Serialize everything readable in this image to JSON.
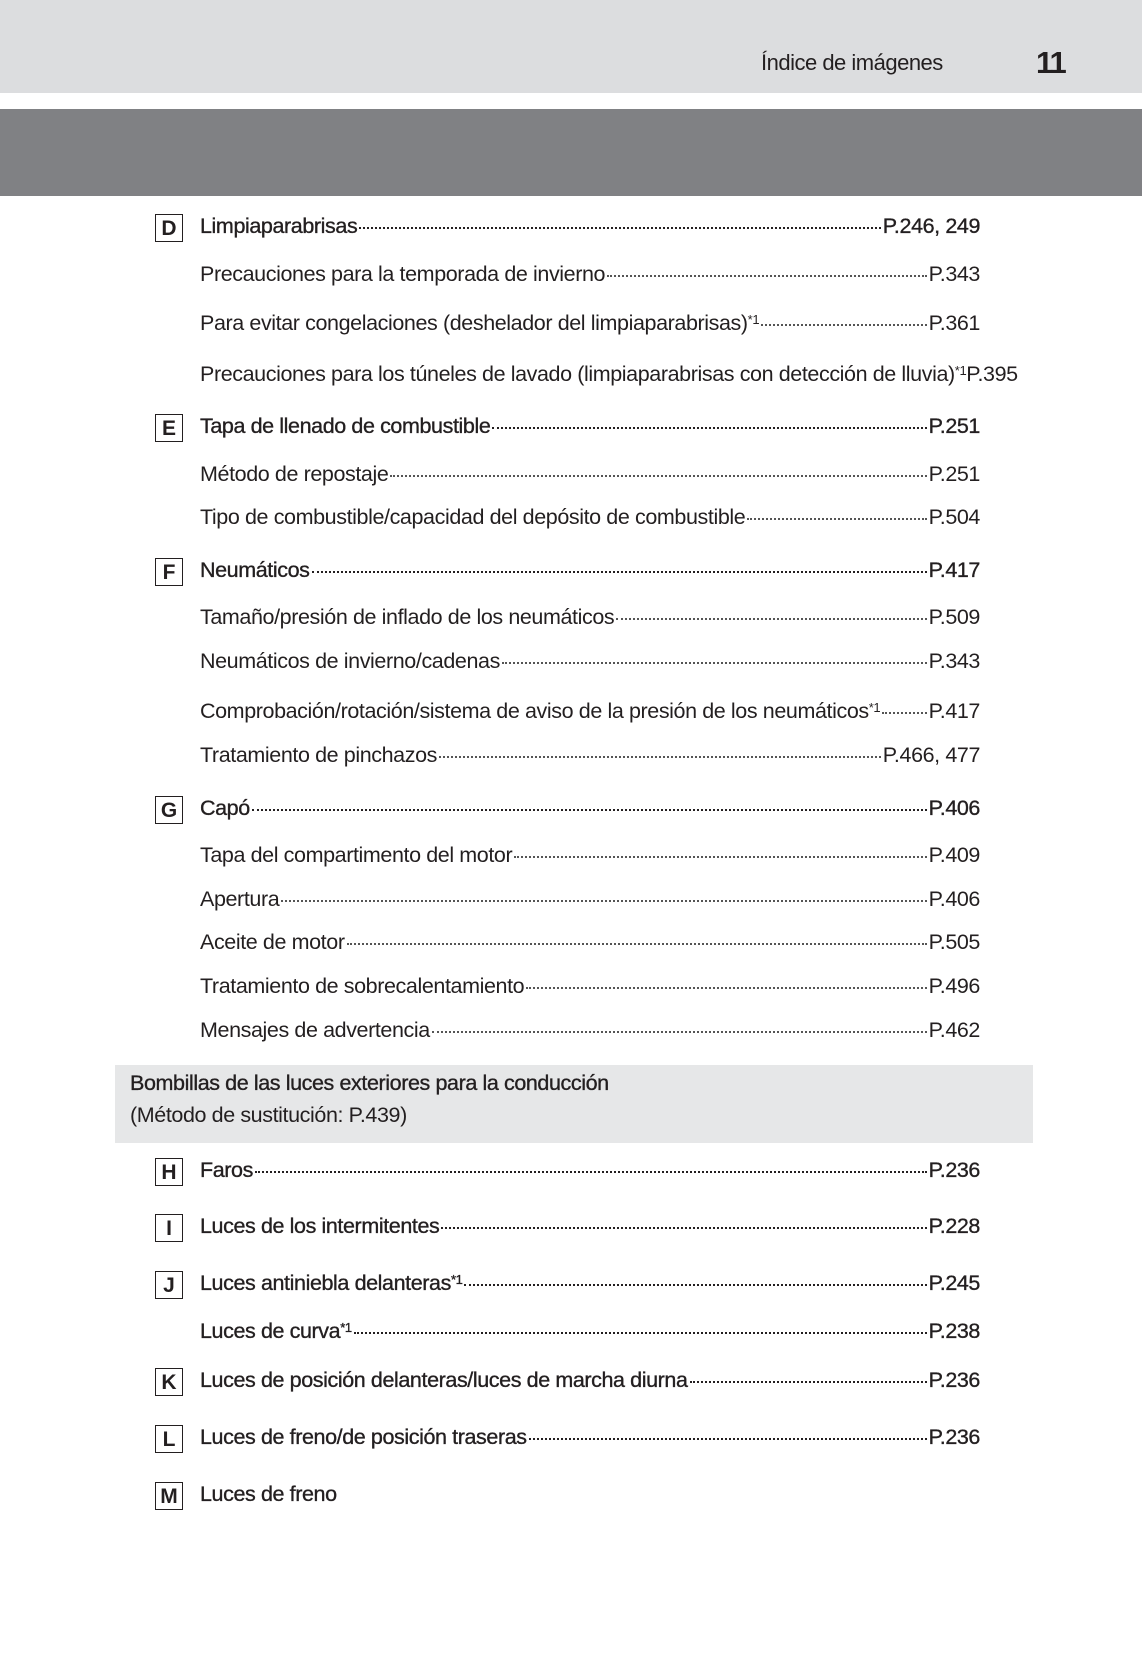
{
  "header": {
    "title": "Índice de imágenes",
    "page_number": "11"
  },
  "entries": [
    {
      "letter": "D",
      "label": "Limpiaparabrisas",
      "sup": "",
      "page": "P.246, 249",
      "main": true
    },
    {
      "letter": "",
      "label": "Precauciones para la temporada de invierno",
      "sup": "",
      "page": "P.343",
      "main": false
    },
    {
      "letter": "",
      "label": "Para evitar congelaciones (deshelador del limpiaparabrisas)",
      "sup": "*1",
      "page": "P.361",
      "main": false
    },
    {
      "letter": "",
      "label": "Precauciones para los túneles de lavado (limpiaparabrisas con detección de lluvia)",
      "sup": "*1",
      "page": "P.395",
      "main": false
    },
    {
      "letter": "E",
      "label": "Tapa de llenado de combustible",
      "sup": "",
      "page": "P.251",
      "main": true
    },
    {
      "letter": "",
      "label": "Método de repostaje",
      "sup": "",
      "page": "P.251",
      "main": false
    },
    {
      "letter": "",
      "label": "Tipo de combustible/capacidad del depósito de combustible",
      "sup": "",
      "page": "P.504",
      "main": false
    },
    {
      "letter": "F",
      "label": "Neumáticos",
      "sup": "",
      "page": "P.417",
      "main": true
    },
    {
      "letter": "",
      "label": "Tamaño/presión de inflado de los neumáticos",
      "sup": "",
      "page": "P.509",
      "main": false
    },
    {
      "letter": "",
      "label": "Neumáticos de invierno/cadenas",
      "sup": "",
      "page": "P.343",
      "main": false
    },
    {
      "letter": "",
      "label": "Comprobación/rotación/sistema de aviso de la presión de los neumáticos",
      "sup": "*1",
      "page": "P.417",
      "main": false
    },
    {
      "letter": "",
      "label": "Tratamiento de pinchazos",
      "sup": "",
      "page": "P.466, 477",
      "main": false
    },
    {
      "letter": "G",
      "label": "Capó",
      "sup": "",
      "page": "P.406",
      "main": true
    },
    {
      "letter": "",
      "label": "Tapa del compartimento del motor",
      "sup": "",
      "page": "P.409",
      "main": false
    },
    {
      "letter": "",
      "label": "Apertura",
      "sup": "",
      "page": "P.406",
      "main": false
    },
    {
      "letter": "",
      "label": "Aceite de motor",
      "sup": "",
      "page": "P.505",
      "main": false
    },
    {
      "letter": "",
      "label": "Tratamiento de sobrecalentamiento",
      "sup": "",
      "page": "P.496",
      "main": false
    },
    {
      "letter": "",
      "label": "Mensajes de advertencia",
      "sup": "",
      "page": "P.462",
      "main": false
    }
  ],
  "bulbs_box": {
    "title": "Bombillas de las luces exteriores para la conducción",
    "subtitle": "(Método de sustitución: P.439)"
  },
  "bulb_entries": [
    {
      "letter": "H",
      "label": "Faros",
      "sup": "",
      "page": "P.236",
      "main": true
    },
    {
      "letter": "I",
      "label": "Luces de los intermitentes",
      "sup": "",
      "page": "P.228",
      "main": true
    },
    {
      "letter": "J",
      "label": "Luces antiniebla delanteras",
      "sup": "*1",
      "page": "P.245",
      "main": true
    },
    {
      "letter": "",
      "label": "Luces de curva",
      "sup": "*1",
      "page": "P.238",
      "main": true
    },
    {
      "letter": "K",
      "label": "Luces de posición delanteras/luces de marcha diurna",
      "sup": "",
      "page": "P.236",
      "main": true
    },
    {
      "letter": "L",
      "label": "Luces de freno/de posición traseras",
      "sup": "",
      "page": "P.236",
      "main": true
    },
    {
      "letter": "M",
      "label": "Luces de freno",
      "sup": "",
      "page": "",
      "main": true
    }
  ]
}
